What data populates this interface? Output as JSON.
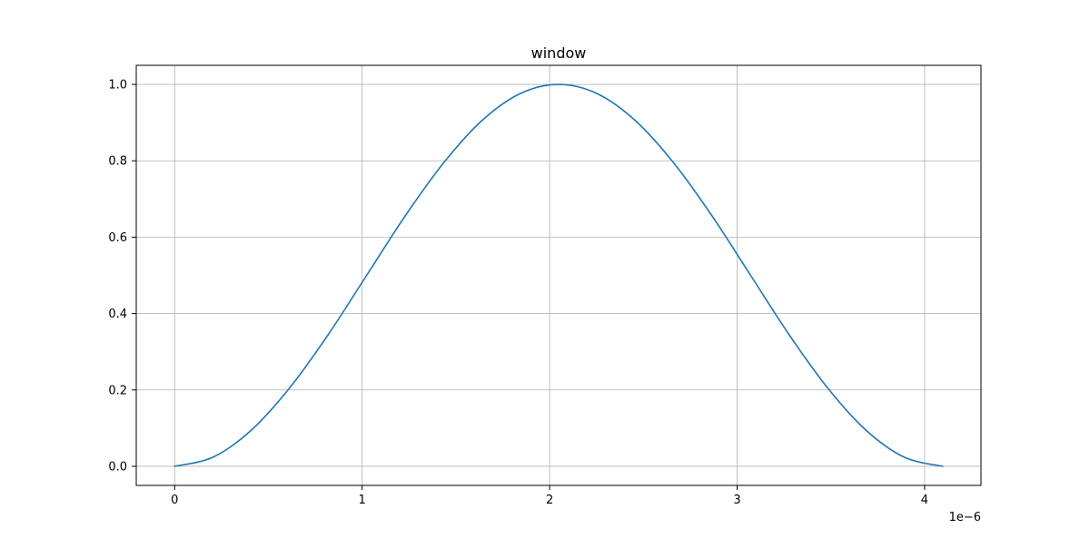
{
  "chart_data": {
    "type": "line",
    "title": "window",
    "xlabel": "",
    "ylabel": "",
    "x_offset_text": "1e−6",
    "x_scale": 1e-06,
    "xlim": [
      -2.048e-07,
      4.3008e-06
    ],
    "ylim": [
      -0.05,
      1.05
    ],
    "x_ticks": [
      0,
      1e-06,
      2e-06,
      3e-06,
      4e-06
    ],
    "x_tick_labels": [
      "0",
      "1",
      "2",
      "3",
      "4"
    ],
    "y_ticks": [
      0.0,
      0.2,
      0.4,
      0.6,
      0.8,
      1.0
    ],
    "y_tick_labels": [
      "0.0",
      "0.2",
      "0.4",
      "0.6",
      "0.8",
      "1.0"
    ],
    "grid": true,
    "legend": "none",
    "series": [
      {
        "color": "#1f77b4",
        "x": [
          0,
          2.048e-07,
          4.096e-07,
          6.144e-07,
          8.192e-07,
          1.024e-06,
          1.2288e-06,
          1.4336e-06,
          1.6384e-06,
          1.8432e-06,
          2.048e-06,
          2.2528e-06,
          2.4576e-06,
          2.6624e-06,
          2.8672e-06,
          3.072e-06,
          3.2768e-06,
          3.4816e-06,
          3.6864e-06,
          3.8912e-06,
          4.096e-06
        ],
        "y": [
          0.0,
          0.024,
          0.095,
          0.206,
          0.345,
          0.5,
          0.655,
          0.794,
          0.905,
          0.976,
          1.0,
          0.976,
          0.905,
          0.794,
          0.655,
          0.5,
          0.345,
          0.206,
          0.095,
          0.024,
          0.0
        ]
      }
    ]
  }
}
